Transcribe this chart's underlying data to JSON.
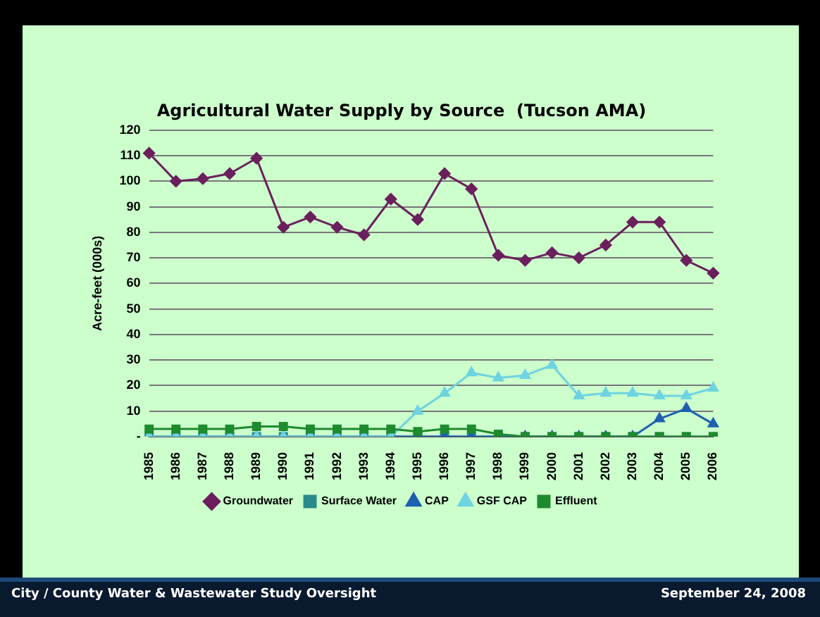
{
  "chart_data": {
    "type": "line",
    "title": "Agricultural Water Supply by Source  (Tucson AMA)",
    "ylabel": "Acre-feet (000s)",
    "categories": [
      "1985",
      "1986",
      "1987",
      "1988",
      "1989",
      "1990",
      "1991",
      "1992",
      "1993",
      "1994",
      "1995",
      "1996",
      "1997",
      "1998",
      "1999",
      "2000",
      "2001",
      "2002",
      "2003",
      "2004",
      "2005",
      "2006"
    ],
    "series": [
      {
        "name": "Groundwater",
        "color": "#6b1f5c",
        "marker": "diamond",
        "values": [
          111,
          100,
          101,
          103,
          109,
          82,
          86,
          82,
          79,
          93,
          85,
          103,
          97,
          71,
          69,
          72,
          70,
          75,
          84,
          84,
          69,
          64
        ]
      },
      {
        "name": "Surface Water",
        "color": "#2a8a8a",
        "marker": "square",
        "values": [
          0,
          0,
          0,
          0,
          0,
          0,
          0,
          0,
          0,
          0,
          0,
          0,
          0,
          0,
          0,
          0,
          0,
          0,
          0,
          0,
          0,
          0
        ]
      },
      {
        "name": "CAP",
        "color": "#1f5fb0",
        "marker": "triangle",
        "values": [
          0,
          0,
          0,
          0,
          0,
          0,
          0,
          0,
          0,
          0,
          0,
          0,
          0,
          0,
          0,
          0,
          0,
          0,
          0,
          7,
          11,
          5
        ]
      },
      {
        "name": "GSF CAP",
        "color": "#6fd3e0",
        "marker": "triangle",
        "values": [
          0,
          0,
          0,
          0,
          0,
          0,
          0,
          0,
          0,
          0,
          10,
          17,
          25,
          23,
          24,
          28,
          16,
          17,
          17,
          16,
          16,
          19
        ]
      },
      {
        "name": "Effluent",
        "color": "#1e8a2e",
        "marker": "square",
        "values": [
          3,
          3,
          3,
          3,
          4,
          4,
          3,
          3,
          3,
          3,
          2,
          3,
          3,
          1,
          0,
          0,
          0,
          0,
          0,
          0,
          0,
          0
        ]
      }
    ],
    "ylim": [
      0,
      120
    ],
    "yticks": [
      {
        "value": 0,
        "label": "-"
      },
      10,
      20,
      30,
      40,
      50,
      60,
      70,
      80,
      90,
      100,
      110,
      120
    ],
    "grid": "y",
    "legend": "bottom",
    "annotations": [
      "City / County Water & Wastewater Study Oversight",
      "September 24, 2008"
    ]
  }
}
